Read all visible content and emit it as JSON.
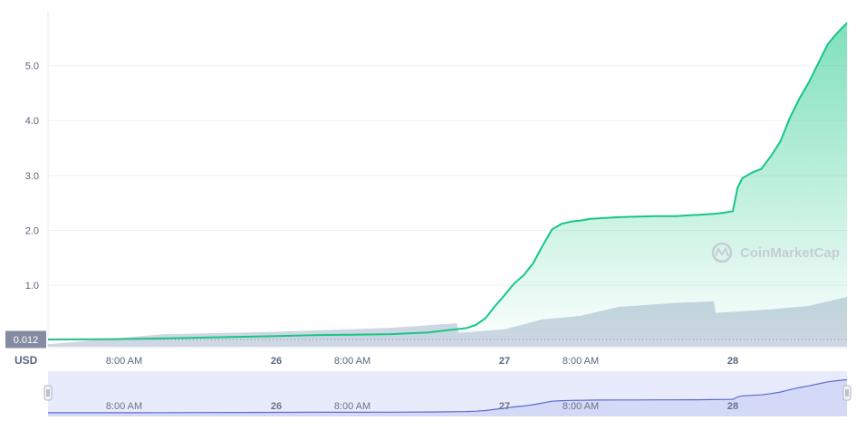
{
  "chart_data": {
    "type": "area",
    "y_unit": "USD",
    "current_price_label": "0.012",
    "watermark": "CoinMarketCap",
    "ylim": [
      -0.12,
      6.0
    ],
    "yticks": [
      {
        "label": "5.0",
        "value": 5.0
      },
      {
        "label": "4.0",
        "value": 4.0
      },
      {
        "label": "3.0",
        "value": 3.0
      },
      {
        "label": "2.0",
        "value": 2.0
      },
      {
        "label": "1.0",
        "value": 1.0
      }
    ],
    "xlim": [
      0,
      84
    ],
    "xticks": [
      {
        "label": "8:00 AM",
        "t": 8,
        "bold": false
      },
      {
        "label": "26",
        "t": 24,
        "bold": true
      },
      {
        "label": "8:00 AM",
        "t": 32,
        "bold": false
      },
      {
        "label": "27",
        "t": 48,
        "bold": true
      },
      {
        "label": "8:00 AM",
        "t": 56,
        "bold": false
      },
      {
        "label": "28",
        "t": 72,
        "bold": true
      }
    ],
    "series": [
      {
        "color": "#16c784",
        "x": [
          0,
          4,
          8,
          12,
          16,
          20,
          24,
          28,
          32,
          36,
          40,
          42,
          44,
          45,
          46,
          47,
          48,
          49,
          50,
          51,
          52,
          53,
          54,
          55,
          56,
          57,
          58,
          60,
          62,
          64,
          66,
          67,
          68,
          70,
          71,
          72,
          72.5,
          73,
          74,
          75,
          76,
          77,
          78,
          79,
          80,
          81,
          82,
          83,
          84
        ],
        "y": [
          0.012,
          0.014,
          0.02,
          0.03,
          0.045,
          0.06,
          0.075,
          0.09,
          0.1,
          0.11,
          0.14,
          0.18,
          0.22,
          0.28,
          0.4,
          0.62,
          0.82,
          1.03,
          1.18,
          1.4,
          1.72,
          2.02,
          2.12,
          2.16,
          2.18,
          2.21,
          2.22,
          2.24,
          2.25,
          2.26,
          2.26,
          2.27,
          2.28,
          2.3,
          2.32,
          2.35,
          2.78,
          2.95,
          3.05,
          3.12,
          3.35,
          3.62,
          4.05,
          4.4,
          4.7,
          5.05,
          5.4,
          5.6,
          5.78
        ]
      }
    ],
    "volume": {
      "x": [
        0,
        12,
        24,
        36,
        43,
        43.2,
        48,
        52,
        56,
        60,
        66,
        70,
        70.2,
        76,
        80,
        84
      ],
      "v": [
        0.05,
        0.25,
        0.3,
        0.38,
        0.47,
        0.28,
        0.35,
        0.55,
        0.62,
        0.8,
        0.88,
        0.91,
        0.68,
        0.75,
        0.82,
        1.0
      ]
    },
    "navigator": {
      "xticks": [
        {
          "label": "8:00 AM",
          "t": 8,
          "bold": false
        },
        {
          "label": "26",
          "t": 24,
          "bold": true
        },
        {
          "label": "8:00 AM",
          "t": 32,
          "bold": false
        },
        {
          "label": "27",
          "t": 48,
          "bold": true
        },
        {
          "label": "8:00 AM",
          "t": 56,
          "bold": false
        },
        {
          "label": "28",
          "t": 72,
          "bold": true
        }
      ]
    }
  },
  "colors": {
    "line": "#16c784",
    "volume": "#cfd6e4",
    "navigator_fill": "#e8ebfb",
    "navigator_line": "#5b6bd6",
    "grid": "#eef0f3",
    "label_bg": "#858ca2"
  }
}
